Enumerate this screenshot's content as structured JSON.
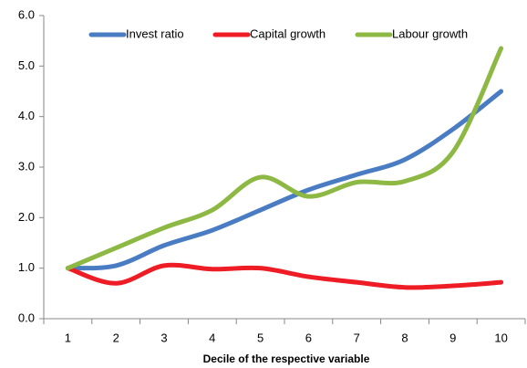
{
  "chart_data": {
    "type": "line",
    "x_label": "Decile of the respective variable",
    "categories": [
      "1",
      "2",
      "3",
      "4",
      "5",
      "6",
      "7",
      "8",
      "9",
      "10"
    ],
    "series": [
      {
        "name": "Invest ratio",
        "color": "#4a7cc3",
        "values": [
          1.0,
          1.05,
          1.45,
          1.75,
          2.15,
          2.55,
          2.85,
          3.15,
          3.75,
          4.5
        ]
      },
      {
        "name": "Capital growth",
        "color": "#ee1c24",
        "values": [
          1.0,
          0.7,
          1.05,
          0.98,
          1.0,
          0.83,
          0.72,
          0.62,
          0.65,
          0.72
        ]
      },
      {
        "name": "Labour growth",
        "color": "#8db843",
        "values": [
          1.0,
          1.4,
          1.8,
          2.15,
          2.8,
          2.42,
          2.7,
          2.72,
          3.3,
          5.35
        ]
      }
    ],
    "ylim": [
      0,
      6
    ],
    "yticks": [
      {
        "value": 0,
        "label": "0.0"
      },
      {
        "value": 1,
        "label": "1.0"
      },
      {
        "value": 2,
        "label": "2.0"
      },
      {
        "value": 3,
        "label": "3.0"
      },
      {
        "value": 4,
        "label": "4.0"
      },
      {
        "value": 5,
        "label": "5.0"
      },
      {
        "value": 6,
        "label": "6.0"
      }
    ],
    "grid": false,
    "legend": "top",
    "smooth": true
  }
}
